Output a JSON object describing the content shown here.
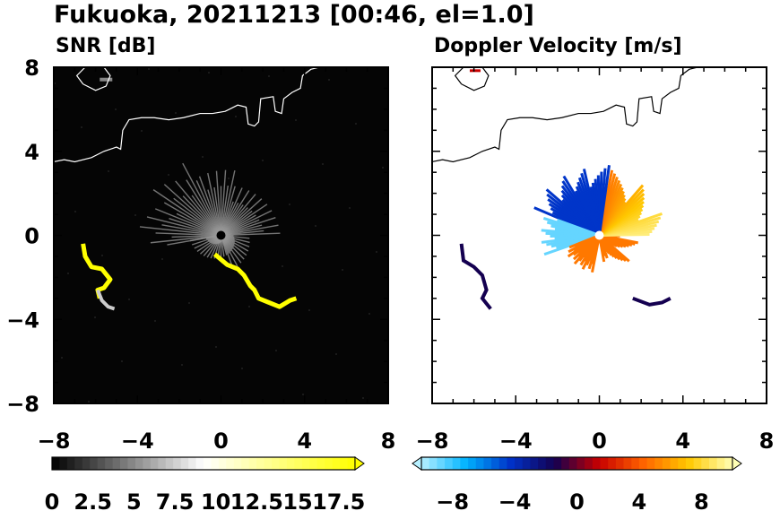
{
  "figure": {
    "title": "Fukuoka, 20211213 [00:46, el=1.0]"
  },
  "chart_data": [
    {
      "type": "heatmap",
      "title": "SNR [dB]",
      "xlabel": "",
      "ylabel": "",
      "xlim": [
        -8,
        8
      ],
      "ylim": [
        -8,
        8
      ],
      "xticks": [
        -8,
        -4,
        0,
        4,
        8
      ],
      "yticks": [
        8,
        4,
        0,
        -4,
        -8
      ],
      "grid": false,
      "colorbar": {
        "min": 0,
        "max": 18.5,
        "labels": [
          "0",
          "2.5",
          "5",
          "7.5",
          "10",
          "12.5",
          "15",
          "17.5"
        ],
        "extend": "max",
        "colors": [
          "#000000",
          "#ffffff",
          "#ffff00"
        ]
      }
    },
    {
      "type": "heatmap",
      "title": "Doppler Velocity [m/s]",
      "xlabel": "",
      "ylabel": "",
      "xlim": [
        -8,
        8
      ],
      "ylim": [
        -8,
        8
      ],
      "xticks": [
        -8,
        -4,
        0,
        4,
        8
      ],
      "yticks": [
        8,
        4,
        0,
        -4,
        -8
      ],
      "grid": false,
      "colorbar": {
        "min": -10,
        "max": 10,
        "labels": [
          "−8",
          "−4",
          "0",
          "4",
          "8"
        ],
        "extend": "both",
        "colors": [
          "#b7f0ff",
          "#00b4ff",
          "#0032c8",
          "#140050",
          "#c80000",
          "#ff6400",
          "#ffc800",
          "#ffffb4"
        ]
      }
    }
  ]
}
